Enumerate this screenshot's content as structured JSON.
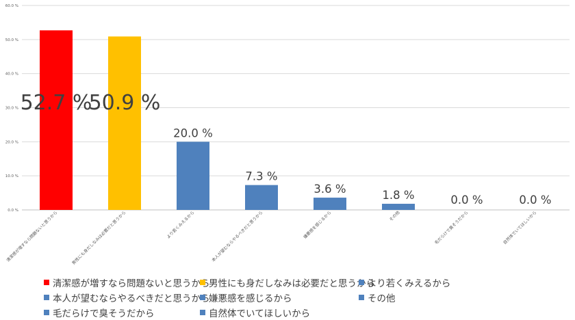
{
  "chart_data": {
    "type": "bar",
    "categories": [
      "清潔感が増すなら問題ないと思うから",
      "男性にも身だしなみは必要だと思うから",
      "より若くみえるから",
      "本人が望むならやるべきだと思うから",
      "嫌悪感を感じるから",
      "その他",
      "毛だらけで臭そうだから",
      "自然体でいてほしいから"
    ],
    "values": [
      52.7,
      50.9,
      20.0,
      7.3,
      3.6,
      1.8,
      0.0,
      0.0
    ],
    "data_labels": [
      "52.7 %",
      "50.9 %",
      "20.0 %",
      "7.3 %",
      "3.6 %",
      "1.8 %",
      "0.0 %",
      "0.0 %"
    ],
    "colors": [
      "#ff0000",
      "#ffc000",
      "#4f81bd",
      "#4f81bd",
      "#4f81bd",
      "#4f81bd",
      "#4f81bd",
      "#4f81bd"
    ],
    "ylim": [
      0,
      60
    ],
    "yticks": [
      0,
      10,
      20,
      30,
      40,
      50,
      60
    ],
    "ytick_labels": [
      "0.0 %",
      "10.0 %",
      "20.0 %",
      "30.0 %",
      "40.0 %",
      "50.0 %",
      "60.0 %"
    ],
    "grid": true,
    "legend_position": "bottom",
    "title": "",
    "xlabel": "",
    "ylabel": ""
  }
}
